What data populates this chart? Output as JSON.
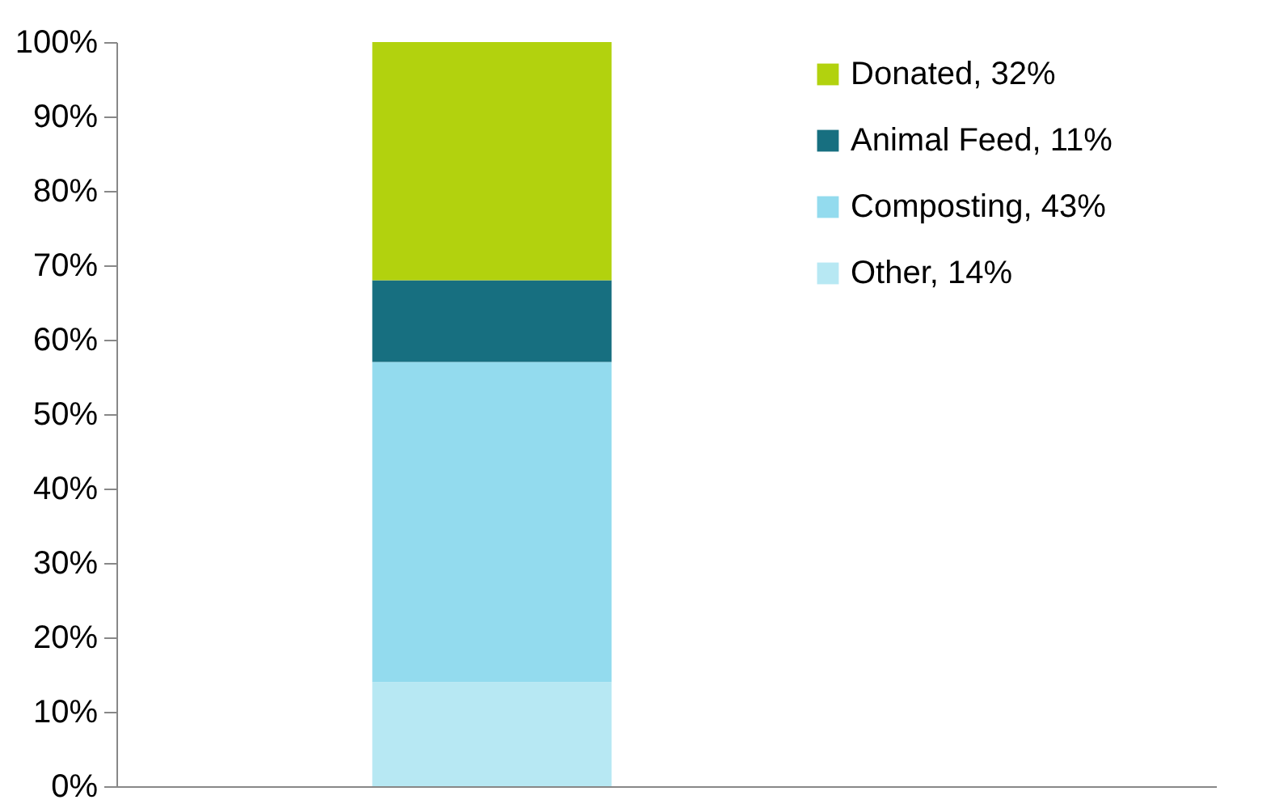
{
  "chart_data": {
    "type": "bar",
    "stacked": true,
    "categories": [
      null
    ],
    "series": [
      {
        "name": "Other, 14%",
        "color": "#b7e8f3",
        "values": [
          14
        ]
      },
      {
        "name": "Composting, 43%",
        "color": "#93dbee",
        "values": [
          43
        ]
      },
      {
        "name": "Animal Feed, 11%",
        "color": "#176f80",
        "values": [
          11
        ]
      },
      {
        "name": "Donated, 32%",
        "color": "#b2d20e",
        "values": [
          32
        ]
      }
    ],
    "ylim": [
      0,
      100
    ],
    "yticks": [
      {
        "value": 0,
        "label": "0%"
      },
      {
        "value": 10,
        "label": "10%"
      },
      {
        "value": 20,
        "label": "20%"
      },
      {
        "value": 30,
        "label": "30%"
      },
      {
        "value": 40,
        "label": "40%"
      },
      {
        "value": 50,
        "label": "50%"
      },
      {
        "value": 60,
        "label": "60%"
      },
      {
        "value": 70,
        "label": "70%"
      },
      {
        "value": 80,
        "label": "80%"
      },
      {
        "value": 90,
        "label": "90%"
      },
      {
        "value": 100,
        "label": "100%"
      }
    ],
    "tick_labels": "y",
    "legend": "top right"
  }
}
